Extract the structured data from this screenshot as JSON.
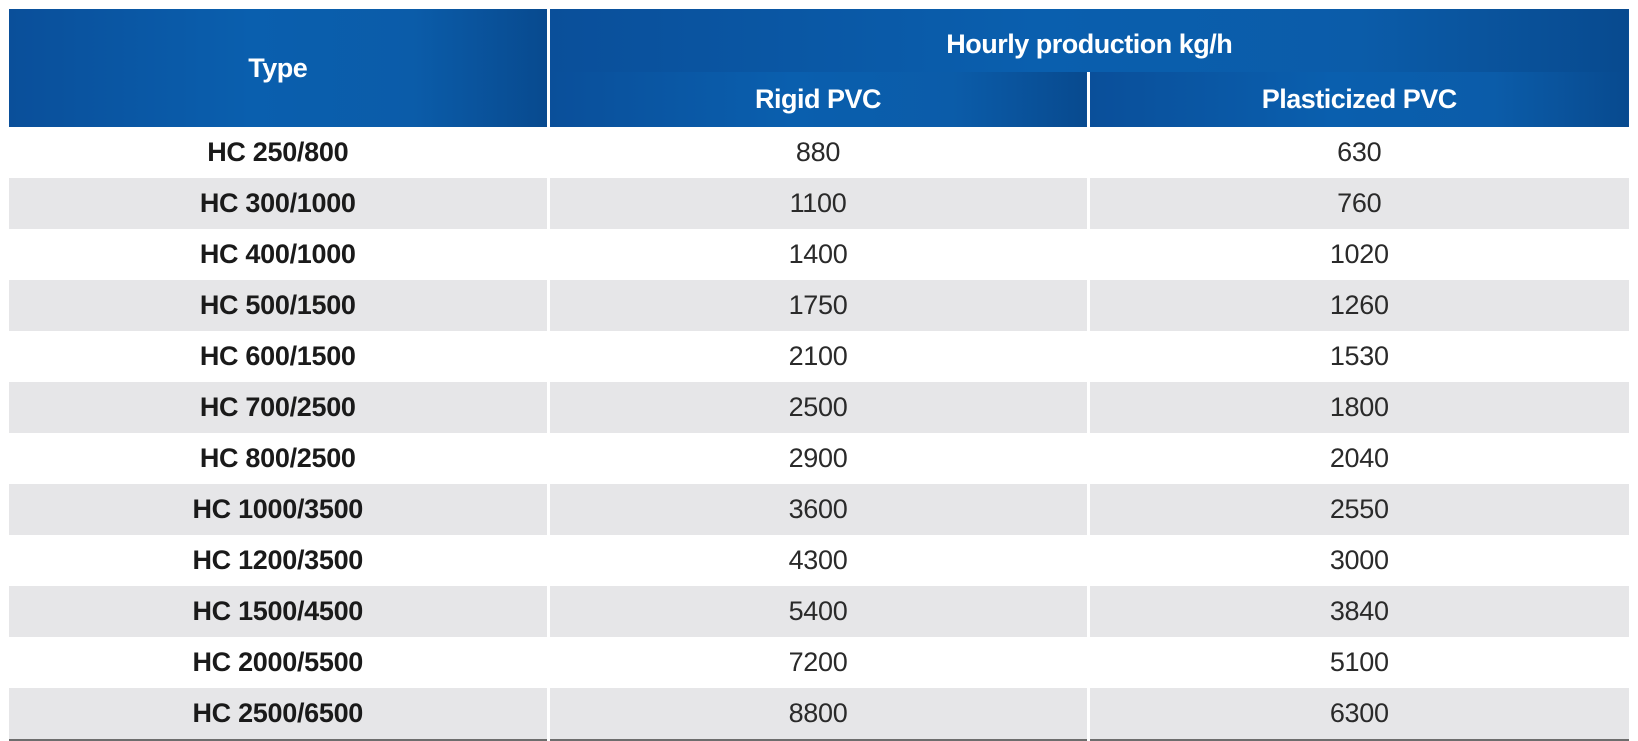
{
  "table": {
    "header": {
      "type": "Type",
      "group": "Hourly production kg/h",
      "rigid": "Rigid PVC",
      "plasticized": "Plasticized PVC"
    },
    "rows": [
      {
        "type": "HC 250/800",
        "rigid": "880",
        "plasticized": "630"
      },
      {
        "type": "HC 300/1000",
        "rigid": "1100",
        "plasticized": "760"
      },
      {
        "type": "HC 400/1000",
        "rigid": "1400",
        "plasticized": "1020"
      },
      {
        "type": "HC 500/1500",
        "rigid": "1750",
        "plasticized": "1260"
      },
      {
        "type": "HC 600/1500",
        "rigid": "2100",
        "plasticized": "1530"
      },
      {
        "type": "HC 700/2500",
        "rigid": "2500",
        "plasticized": "1800"
      },
      {
        "type": "HC 800/2500",
        "rigid": "2900",
        "plasticized": "2040"
      },
      {
        "type": "HC 1000/3500",
        "rigid": "3600",
        "plasticized": "2550"
      },
      {
        "type": "HC 1200/3500",
        "rigid": "4300",
        "plasticized": "3000"
      },
      {
        "type": "HC 1500/4500",
        "rigid": "5400",
        "plasticized": "3840"
      },
      {
        "type": "HC 2000/5500",
        "rigid": "7200",
        "plasticized": "5100"
      },
      {
        "type": "HC 2500/6500",
        "rigid": "8800",
        "plasticized": "6300"
      }
    ]
  },
  "colors": {
    "header_bg": "#0a5fae",
    "row_alt_bg": "#e6e6e8",
    "bottom_rule": "#6d6d6d"
  }
}
